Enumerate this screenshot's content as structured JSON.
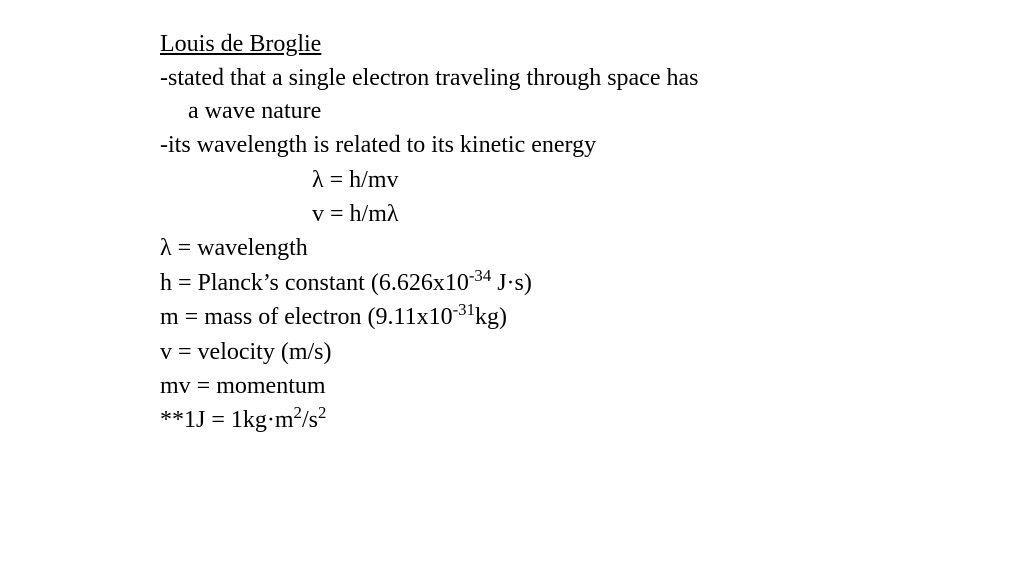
{
  "title": "Louis de Broglie",
  "bullet1_line1": "-stated that a single electron traveling through space has",
  "bullet1_line2": "a wave nature",
  "bullet2": "-its wavelength is related to its kinetic energy",
  "eq1": "λ = h/mv",
  "eq2": "v = h/mλ",
  "def_lambda": "λ = wavelength",
  "def_h_pre": "h = Planck’s constant (6.626x10",
  "def_h_exp": "-34",
  "def_h_post": " J·s)",
  "def_m_pre": "m = mass of electron (9.11x10",
  "def_m_exp": "-31",
  "def_m_post": "kg)",
  "def_v": "v = velocity (m/s)",
  "def_mv": "mv = momentum",
  "joule_pre": "**1J = 1kg·m",
  "joule_exp1": "2",
  "joule_mid": "/s",
  "joule_exp2": "2",
  "colors": {
    "background": "#ffffff",
    "text": "#000000"
  },
  "typography": {
    "font_family": "Times New Roman",
    "font_size_pt": 18
  }
}
